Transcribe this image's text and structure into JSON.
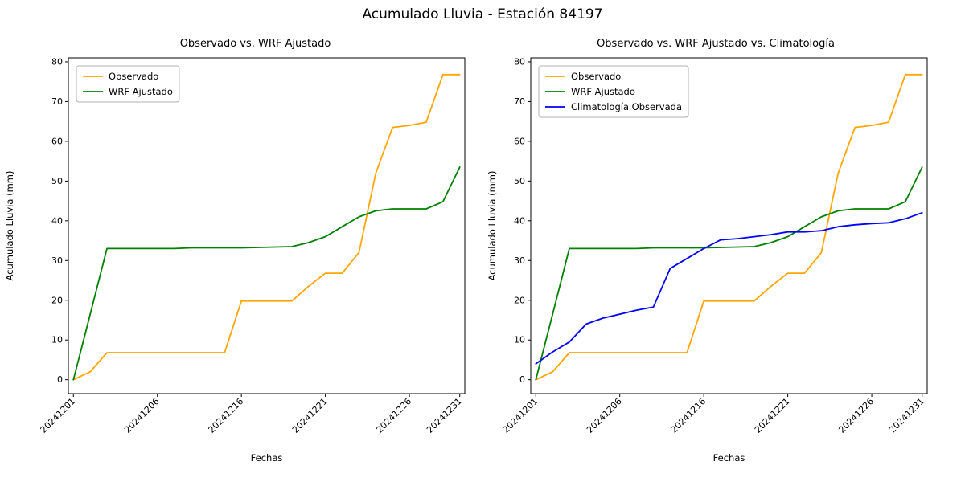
{
  "figure": {
    "title": "Acumulado Lluvia - Estación 84197"
  },
  "chart_data": [
    {
      "type": "line",
      "title": "Observado vs. WRF Ajustado",
      "xlabel": "Fechas",
      "ylabel": "Acumulado Lluvia (mm)",
      "ylim": [
        0,
        80
      ],
      "yticks": [
        0,
        10,
        20,
        30,
        40,
        50,
        60,
        70,
        80
      ],
      "grid": false,
      "legend_position": "upper left",
      "x_ticks": [
        {
          "index": 0,
          "label": "20241201"
        },
        {
          "index": 5,
          "label": "20241206"
        },
        {
          "index": 10,
          "label": "20241216"
        },
        {
          "index": 15,
          "label": "20241221"
        },
        {
          "index": 20,
          "label": "20241226"
        },
        {
          "index": 23,
          "label": "20241231"
        }
      ],
      "series": [
        {
          "name": "Observado",
          "color": "#FFA500",
          "values": [
            0,
            2,
            6.8,
            6.8,
            6.8,
            6.8,
            6.8,
            6.8,
            6.8,
            6.8,
            19.8,
            19.8,
            19.8,
            19.8,
            23.5,
            26.8,
            26.8,
            32,
            52,
            63.5,
            64,
            64.8,
            76.8,
            76.8
          ]
        },
        {
          "name": "WRF Ajustado",
          "color": "#008000",
          "values": [
            0,
            16.5,
            33,
            33,
            33,
            33,
            33,
            33.2,
            33.2,
            33.2,
            33.2,
            33.3,
            33.4,
            33.5,
            34.5,
            36,
            38.5,
            41,
            42.5,
            43,
            43,
            43,
            44.8,
            53.5
          ]
        }
      ]
    },
    {
      "type": "line",
      "title": "Observado vs. WRF Ajustado vs. Climatología",
      "xlabel": "Fechas",
      "ylabel": "Acumulado Lluvia (mm)",
      "ylim": [
        0,
        80
      ],
      "yticks": [
        0,
        10,
        20,
        30,
        40,
        50,
        60,
        70,
        80
      ],
      "grid": false,
      "legend_position": "upper left",
      "x_ticks": [
        {
          "index": 0,
          "label": "20241201"
        },
        {
          "index": 5,
          "label": "20241206"
        },
        {
          "index": 10,
          "label": "20241216"
        },
        {
          "index": 15,
          "label": "20241221"
        },
        {
          "index": 20,
          "label": "20241226"
        },
        {
          "index": 23,
          "label": "20241231"
        }
      ],
      "series": [
        {
          "name": "Observado",
          "color": "#FFA500",
          "values": [
            0,
            2,
            6.8,
            6.8,
            6.8,
            6.8,
            6.8,
            6.8,
            6.8,
            6.8,
            19.8,
            19.8,
            19.8,
            19.8,
            23.5,
            26.8,
            26.8,
            32,
            52,
            63.5,
            64,
            64.8,
            76.8,
            76.8
          ]
        },
        {
          "name": "WRF Ajustado",
          "color": "#008000",
          "values": [
            0,
            16.5,
            33,
            33,
            33,
            33,
            33,
            33.2,
            33.2,
            33.2,
            33.2,
            33.3,
            33.4,
            33.5,
            34.5,
            36,
            38.5,
            41,
            42.5,
            43,
            43,
            43,
            44.8,
            53.5
          ]
        },
        {
          "name": "Climatología Observada",
          "color": "#0000FF",
          "values": [
            4,
            7,
            9.5,
            14,
            15.5,
            16.5,
            17.5,
            18.3,
            28,
            30.5,
            33,
            35.2,
            35.5,
            36,
            36.5,
            37.2,
            37.2,
            37.5,
            38.5,
            39,
            39.3,
            39.5,
            40.5,
            42
          ]
        }
      ]
    }
  ]
}
